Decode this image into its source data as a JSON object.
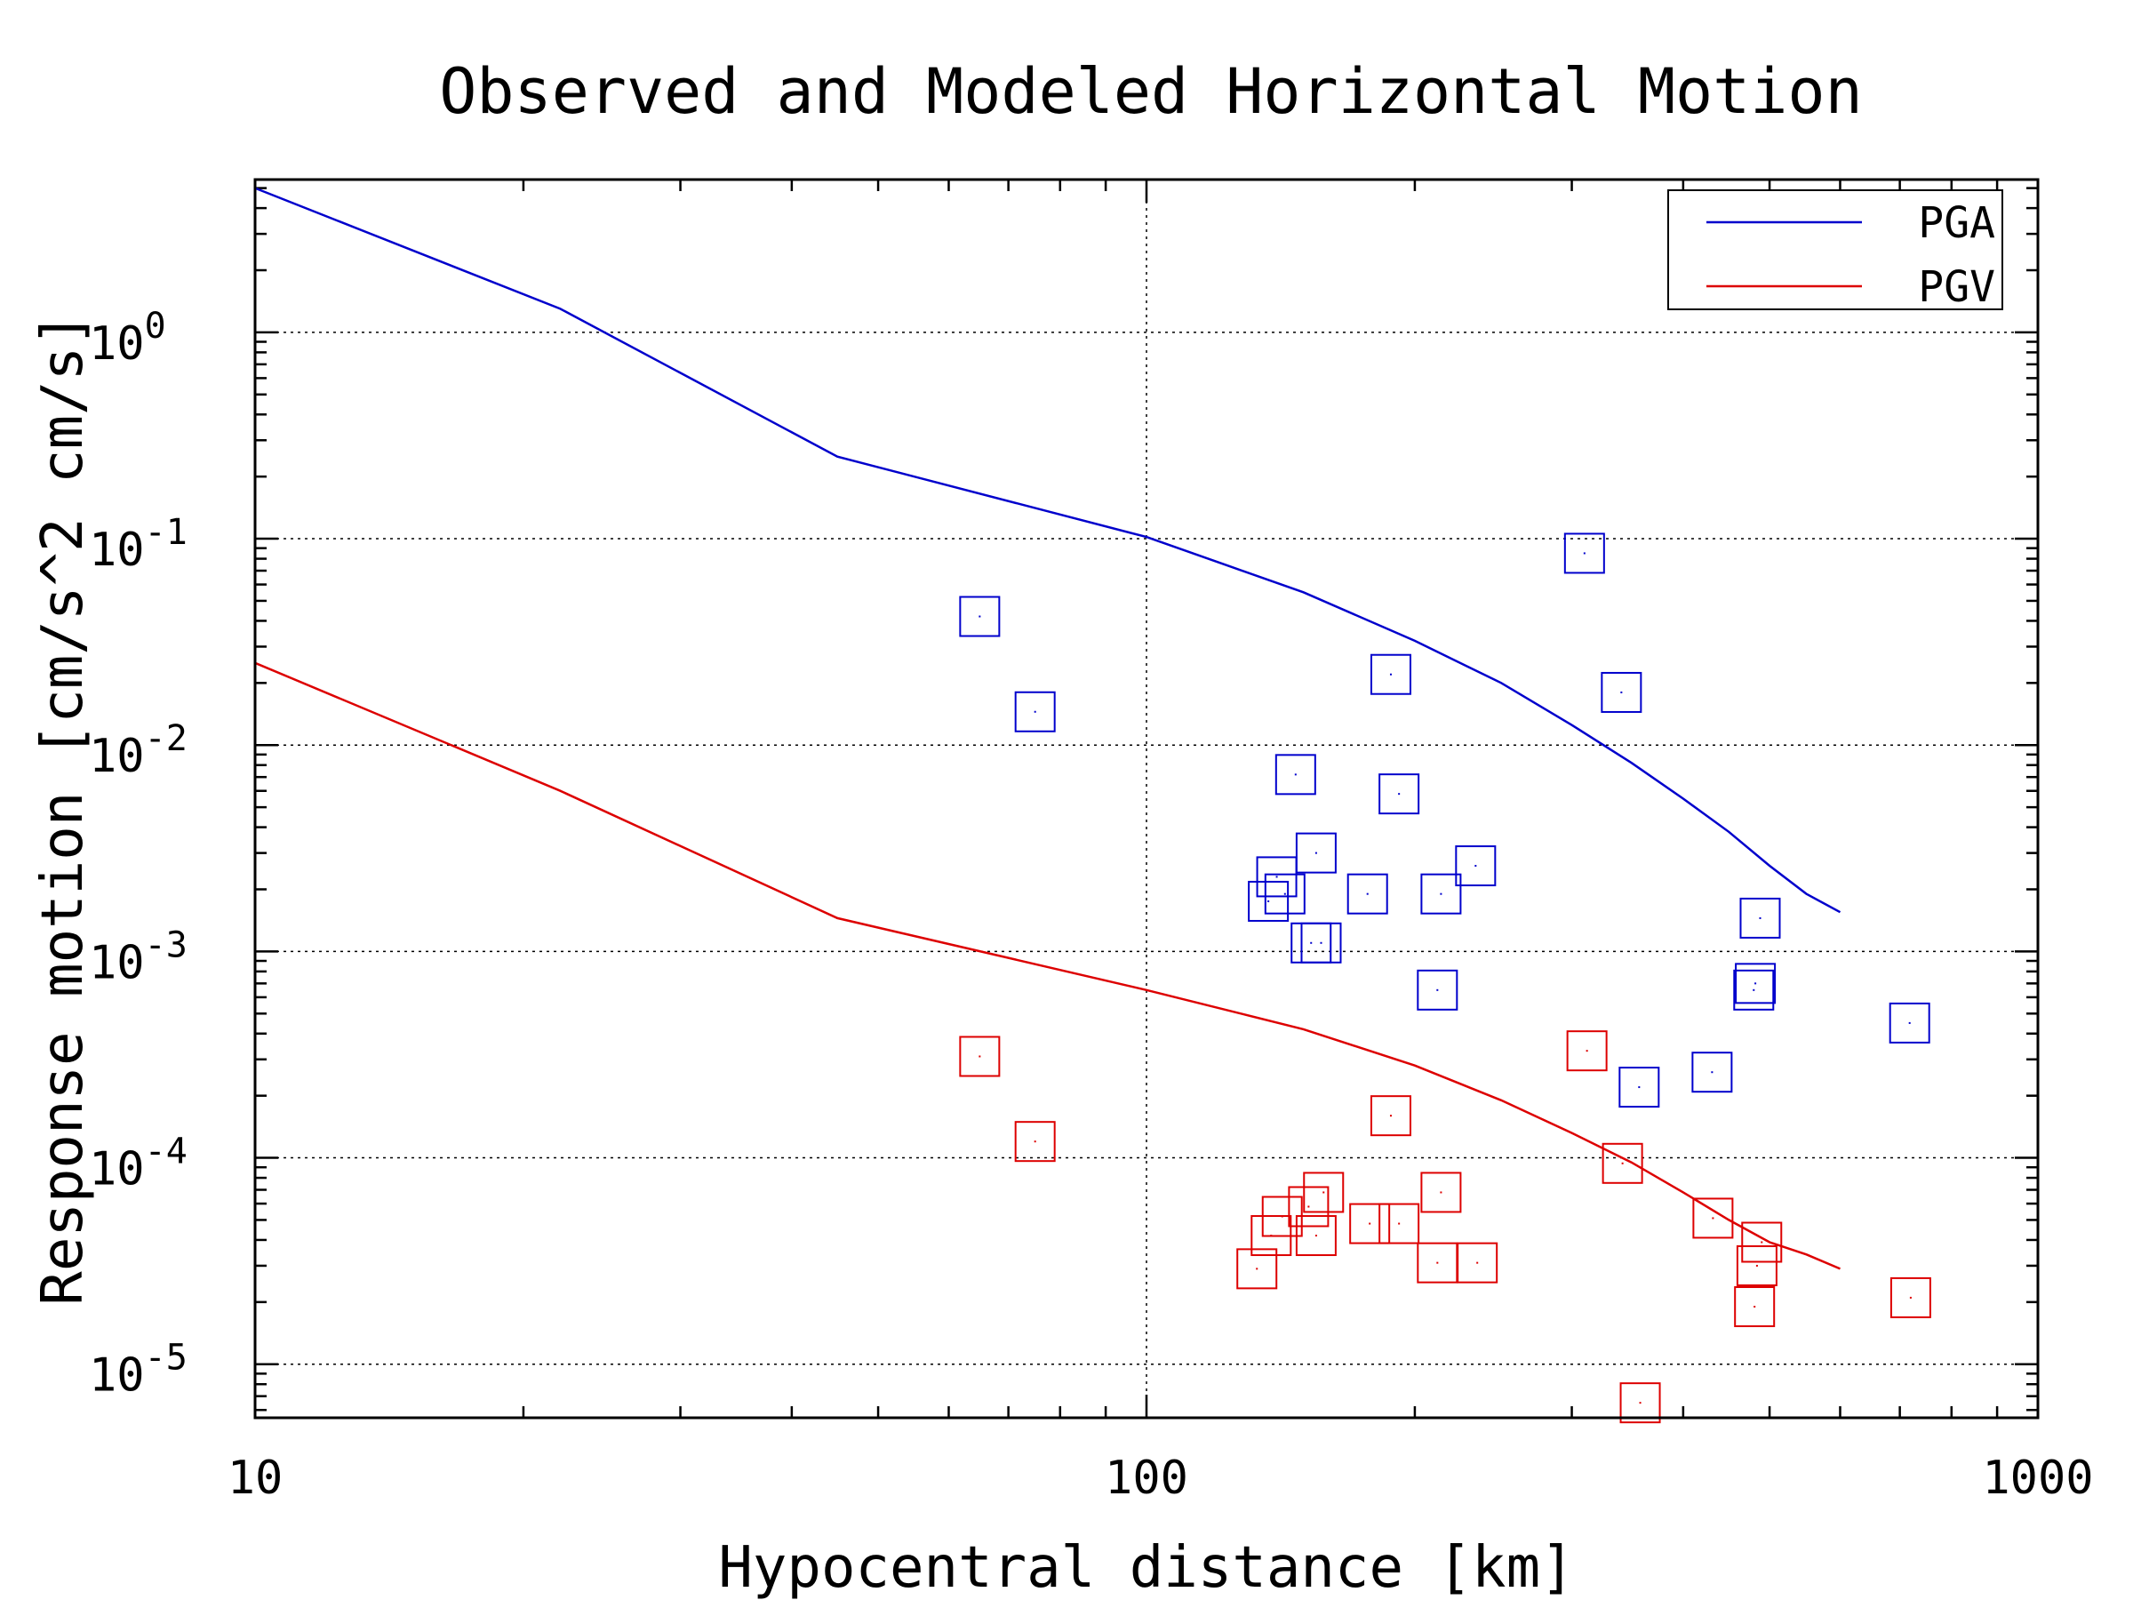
{
  "chart_data": {
    "type": "scatter",
    "title": "Observed and Modeled Horizontal Motion",
    "xlabel": "Hypocentral distance [km]",
    "ylabel": "Response motion [cm/s^2  cm/s]",
    "x_scale": "log",
    "y_scale": "log",
    "xlim": [
      10,
      1000
    ],
    "ylim": [
      5.5e-06,
      5.5
    ],
    "x_ticks": [
      "10",
      "100",
      "1000"
    ],
    "y_ticks": [
      {
        "base": "10",
        "exp": "0"
      },
      {
        "base": "10",
        "exp": "-1"
      },
      {
        "base": "10",
        "exp": "-2"
      },
      {
        "base": "10",
        "exp": "-3"
      },
      {
        "base": "10",
        "exp": "-4"
      },
      {
        "base": "10",
        "exp": "-5"
      }
    ],
    "grid": true,
    "legend": {
      "placement": "top-right",
      "items": [
        {
          "name": "PGA",
          "color": "#0000cc"
        },
        {
          "name": "PGV",
          "color": "#dd0000"
        }
      ]
    },
    "series": [
      {
        "name": "PGA",
        "kind": "line",
        "color": "#0000cc",
        "x": [
          10,
          22,
          45,
          100,
          150,
          200,
          250,
          300,
          350,
          400,
          450,
          500,
          550,
          600
        ],
        "y": [
          5.0,
          1.3,
          0.25,
          0.102,
          0.055,
          0.032,
          0.02,
          0.0125,
          0.0082,
          0.0055,
          0.0038,
          0.0026,
          0.0019,
          0.00155
        ]
      },
      {
        "name": "PGV",
        "kind": "line",
        "color": "#dd0000",
        "x": [
          10,
          22,
          45,
          100,
          150,
          200,
          250,
          300,
          350,
          400,
          450,
          500,
          550,
          600
        ],
        "y": [
          0.025,
          0.006,
          0.00145,
          0.00065,
          0.00042,
          0.00028,
          0.00019,
          0.000132,
          9.5e-05,
          6.8e-05,
          5e-05,
          3.9e-05,
          3.4e-05,
          2.9e-05
        ]
      },
      {
        "name": "PGA observed",
        "kind": "markers",
        "color": "#0000cc",
        "x": [
          65,
          75,
          137,
          140,
          143,
          147,
          153,
          155,
          157,
          177,
          188,
          192,
          212,
          214,
          234,
          310,
          341,
          357,
          431,
          480,
          482,
          488,
          718
        ],
        "y": [
          0.042,
          0.0145,
          0.00175,
          0.0023,
          0.0019,
          0.0072,
          0.0011,
          0.003,
          0.0011,
          0.0019,
          0.022,
          0.0058,
          0.00065,
          0.0019,
          0.0026,
          0.085,
          0.018,
          0.00022,
          0.00026,
          0.00065,
          0.0007,
          0.00145,
          0.00045
        ]
      },
      {
        "name": "PGV observed",
        "kind": "markers",
        "color": "#dd0000",
        "x": [
          65,
          75,
          133,
          138,
          142,
          152,
          155,
          158,
          178,
          188,
          192,
          212,
          214,
          235,
          312,
          342,
          358,
          432,
          481,
          484,
          490,
          720
        ],
        "y": [
          0.00031,
          0.00012,
          2.9e-05,
          4.2e-05,
          5.2e-05,
          5.8e-05,
          4.2e-05,
          6.8e-05,
          4.8e-05,
          0.00016,
          4.8e-05,
          3.1e-05,
          6.8e-05,
          3.1e-05,
          0.00033,
          9.4e-05,
          6.5e-06,
          5.1e-05,
          1.9e-05,
          3e-05,
          3.9e-05,
          2.1e-05
        ]
      }
    ]
  }
}
